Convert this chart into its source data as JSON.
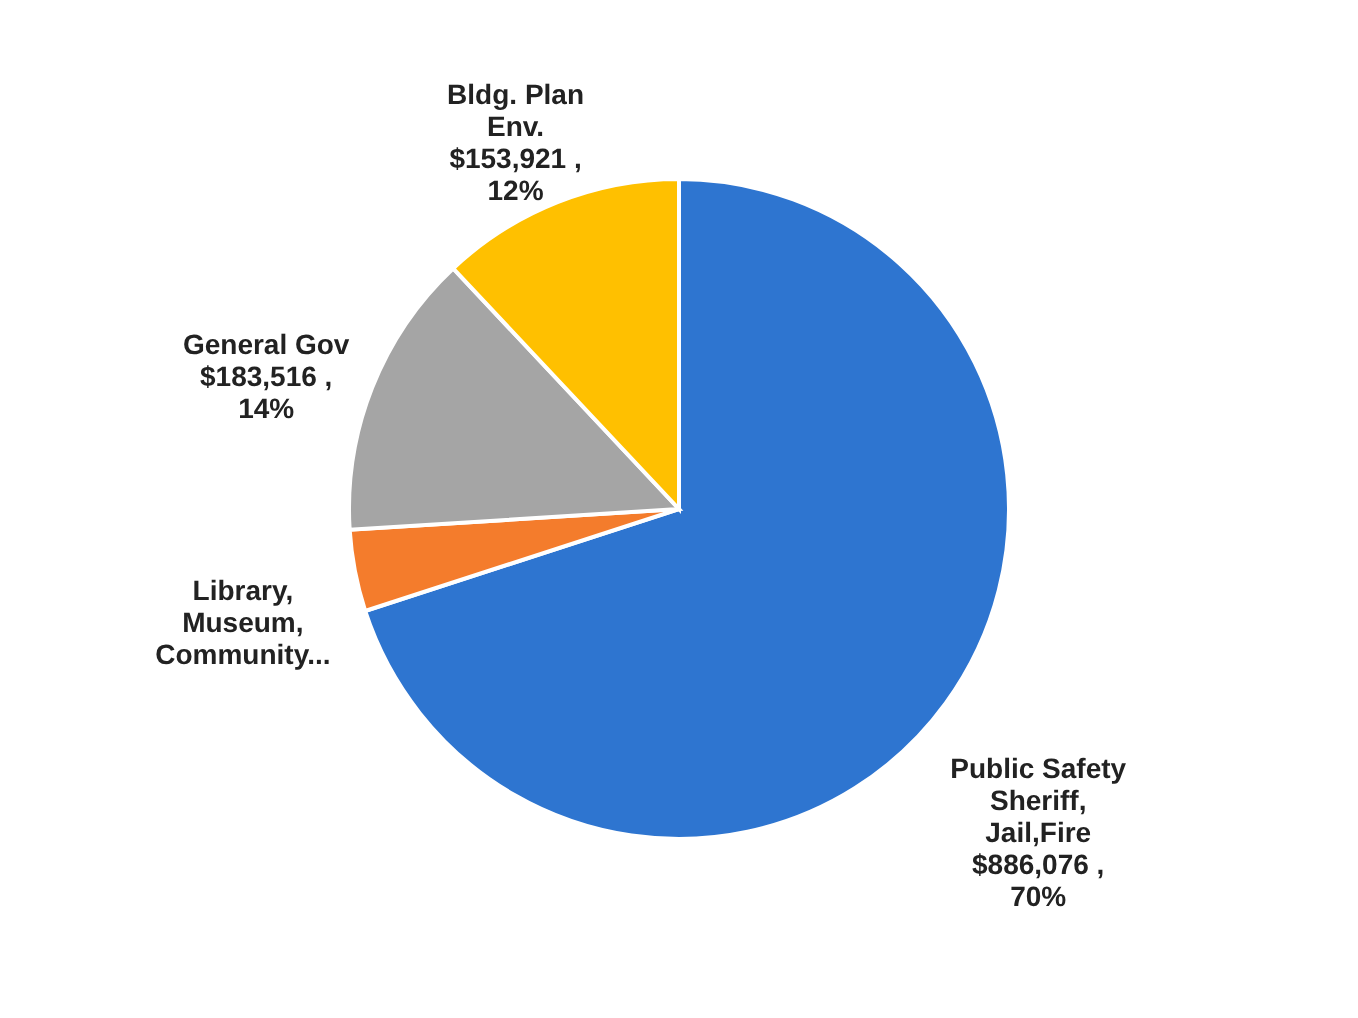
{
  "chart_data": {
    "type": "pie",
    "categories": [
      "Public Safety Sheriff, Jail,Fire",
      "Library, Museum, Community...",
      "General Gov",
      "Bldg. Plan Env."
    ],
    "values": [
      70,
      4,
      14,
      12
    ],
    "value_labels": [
      "$886,076 , 70%",
      null,
      "$183,516 , 14%",
      "$153,921 , 12%"
    ],
    "colors": [
      "#2e75d0",
      "#f47c2c",
      "#a5a5a5",
      "#ffc000"
    ],
    "legend": false
  }
}
